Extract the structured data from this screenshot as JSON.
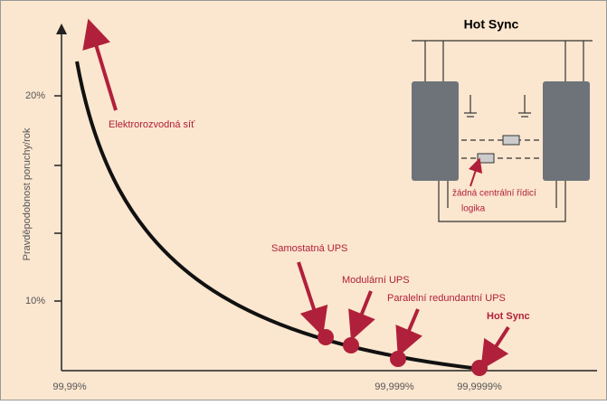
{
  "axes": {
    "y_title": "Pravděpodobnost poruchy/rok",
    "y_labels": [
      "20%",
      "10%"
    ],
    "x_labels": [
      "99,99%",
      "99,999%",
      "99,9999%"
    ]
  },
  "annotations": [
    "Elektrorozvodná síť",
    "Samostatná UPS",
    "Modulární UPS",
    "Paralelní redundantní UPS",
    "Hot Sync"
  ],
  "inset": {
    "title": "Hot Sync",
    "note_lines": [
      "žádná centrální řídicí",
      "logika"
    ]
  }
}
